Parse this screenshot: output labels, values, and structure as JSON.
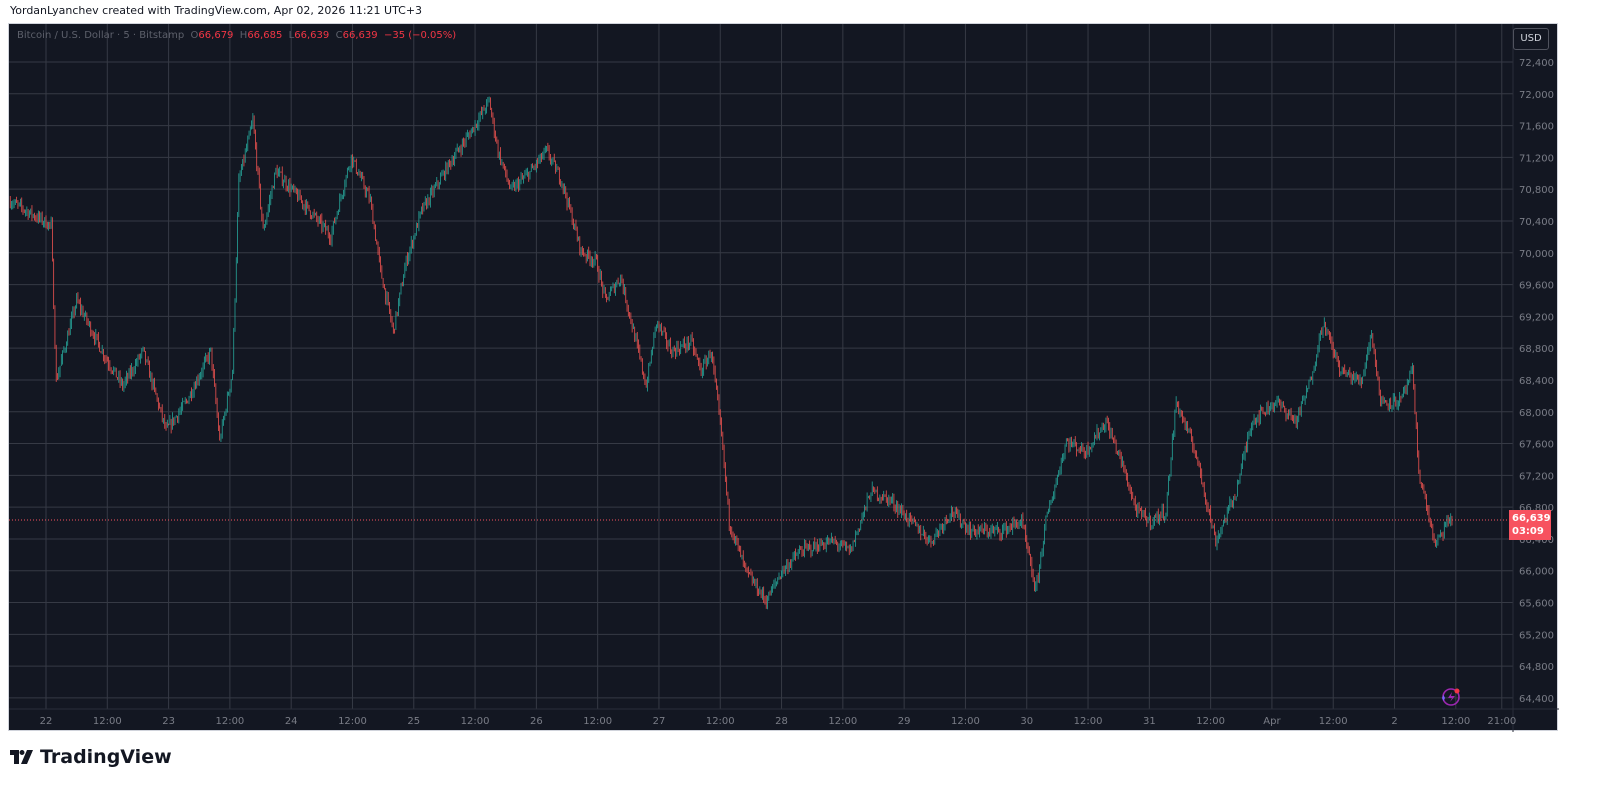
{
  "credit": "YordanLyanchev created with TradingView.com, Apr 02, 2026 11:21 UTC+3",
  "legend": {
    "symbol": "Bitcoin / U.S. Dollar · 5 · Bitstamp",
    "o_label": "O",
    "o": "66,679",
    "h_label": "H",
    "h": "66,685",
    "l_label": "L",
    "l": "66,639",
    "c_label": "C",
    "c": "66,639",
    "change": "−35 (−0.05%)"
  },
  "currency_button": "USD",
  "price_tag": {
    "price": "66,639",
    "countdown": "03:09"
  },
  "footer": {
    "logo_text": "TradingView"
  },
  "colors": {
    "up": "#26a69a",
    "down": "#ef5350",
    "background": "#131722",
    "grid": "#363a45",
    "price_line": "#f7525f"
  },
  "chart_data": {
    "type": "candlestick",
    "title": "Bitcoin / U.S. Dollar · 5 · Bitstamp",
    "ylim": [
      64200,
      72600
    ],
    "y_ticks": [
      "72,400",
      "72,000",
      "71,600",
      "71,200",
      "70,800",
      "70,400",
      "70,000",
      "69,600",
      "69,200",
      "68,800",
      "68,400",
      "68,000",
      "67,600",
      "67,200",
      "66,800",
      "66,400",
      "66,000",
      "65,600",
      "65,200",
      "64,800",
      "64,400"
    ],
    "x_ticks": [
      "22",
      "12:00",
      "23",
      "12:00",
      "24",
      "12:00",
      "25",
      "12:00",
      "26",
      "12:00",
      "27",
      "12:00",
      "28",
      "12:00",
      "29",
      "12:00",
      "30",
      "12:00",
      "31",
      "12:00",
      "Apr",
      "12:00",
      "2",
      "12:00",
      "21:00"
    ],
    "grid": true,
    "last_price": 66639,
    "price_path": [
      [
        "2026-03-21T17:00",
        70650
      ],
      [
        "2026-03-22T01:00",
        70340
      ],
      [
        "2026-03-22T02:00",
        68390
      ],
      [
        "2026-03-22T06:00",
        69400
      ],
      [
        "2026-03-22T11:00",
        68760
      ],
      [
        "2026-03-22T15:00",
        68320
      ],
      [
        "2026-03-22T19:00",
        68760
      ],
      [
        "2026-03-22T23:30",
        67760
      ],
      [
        "2026-03-23T03:30",
        68130
      ],
      [
        "2026-03-23T08:15",
        68760
      ],
      [
        "2026-03-23T10:00",
        67630
      ],
      [
        "2026-03-23T12:30",
        68510
      ],
      [
        "2026-03-23T13:45",
        70900
      ],
      [
        "2026-03-23T16:30",
        71660
      ],
      [
        "2026-03-23T18:30",
        70270
      ],
      [
        "2026-03-23T21:00",
        71030
      ],
      [
        "2026-03-24T02:00",
        70650
      ],
      [
        "2026-03-24T07:45",
        70210
      ],
      [
        "2026-03-24T11:45",
        71210
      ],
      [
        "2026-03-24T15:30",
        70650
      ],
      [
        "2026-03-24T17:30",
        69770
      ],
      [
        "2026-03-24T20:00",
        69010
      ],
      [
        "2026-03-24T22:30",
        69890
      ],
      [
        "2026-03-25T01:30",
        70520
      ],
      [
        "2026-03-25T07:15",
        71150
      ],
      [
        "2026-03-25T11:15",
        71530
      ],
      [
        "2026-03-25T14:45",
        71910
      ],
      [
        "2026-03-25T16:30",
        71280
      ],
      [
        "2026-03-25T19:00",
        70780
      ],
      [
        "2026-03-25T23:00",
        71030
      ],
      [
        "2026-03-26T02:00",
        71280
      ],
      [
        "2026-03-26T05:00",
        70900
      ],
      [
        "2026-03-26T08:45",
        70020
      ],
      [
        "2026-03-26T11:45",
        69890
      ],
      [
        "2026-03-26T13:30",
        69400
      ],
      [
        "2026-03-26T16:30",
        69700
      ],
      [
        "2026-03-26T19:30",
        68880
      ],
      [
        "2026-03-26T21:30",
        68320
      ],
      [
        "2026-03-26T23:30",
        69130
      ],
      [
        "2026-03-27T02:30",
        68760
      ],
      [
        "2026-03-27T06:15",
        68880
      ],
      [
        "2026-03-27T08:15",
        68510
      ],
      [
        "2026-03-27T10:15",
        68760
      ],
      [
        "2026-03-27T12:15",
        67690
      ],
      [
        "2026-03-27T13:45",
        66620
      ],
      [
        "2026-03-27T17:00",
        65990
      ],
      [
        "2026-03-27T21:00",
        65620
      ],
      [
        "2026-03-28T00:00",
        65990
      ],
      [
        "2026-03-28T03:45",
        66250
      ],
      [
        "2026-03-28T09:45",
        66370
      ],
      [
        "2026-03-28T13:30",
        66250
      ],
      [
        "2026-03-28T17:30",
        67000
      ],
      [
        "2026-03-28T21:30",
        66880
      ],
      [
        "2026-03-29T01:15",
        66620
      ],
      [
        "2026-03-29T05:15",
        66370
      ],
      [
        "2026-03-29T09:15",
        66750
      ],
      [
        "2026-03-29T13:00",
        66500
      ],
      [
        "2026-03-29T19:00",
        66500
      ],
      [
        "2026-03-29T23:00",
        66620
      ],
      [
        "2026-03-30T01:45",
        65740
      ],
      [
        "2026-03-30T03:45",
        66620
      ],
      [
        "2026-03-30T07:45",
        67630
      ],
      [
        "2026-03-30T11:30",
        67500
      ],
      [
        "2026-03-30T15:30",
        67880
      ],
      [
        "2026-03-30T18:30",
        67380
      ],
      [
        "2026-03-30T21:30",
        66750
      ],
      [
        "2026-03-31T00:15",
        66620
      ],
      [
        "2026-03-31T03:15",
        66750
      ],
      [
        "2026-03-31T05:15",
        68130
      ],
      [
        "2026-03-31T09:00",
        67500
      ],
      [
        "2026-03-31T13:00",
        66370
      ],
      [
        "2026-03-31T17:00",
        67000
      ],
      [
        "2026-03-31T20:00",
        67880
      ],
      [
        "2026-04-01T00:45",
        68130
      ],
      [
        "2026-04-01T04:45",
        67880
      ],
      [
        "2026-04-01T07:30",
        68380
      ],
      [
        "2026-04-01T10:00",
        69130
      ],
      [
        "2026-04-01T13:30",
        68510
      ],
      [
        "2026-04-01T17:30",
        68380
      ],
      [
        "2026-04-01T19:30",
        69010
      ],
      [
        "2026-04-01T21:15",
        68130
      ],
      [
        "2026-04-02T01:15",
        68130
      ],
      [
        "2026-04-02T03:30",
        68510
      ],
      [
        "2026-04-02T04:45",
        67250
      ],
      [
        "2026-04-02T08:00",
        66310
      ],
      [
        "2026-04-02T11:00",
        66680
      ],
      [
        "2026-04-02T11:20",
        66639
      ]
    ]
  }
}
